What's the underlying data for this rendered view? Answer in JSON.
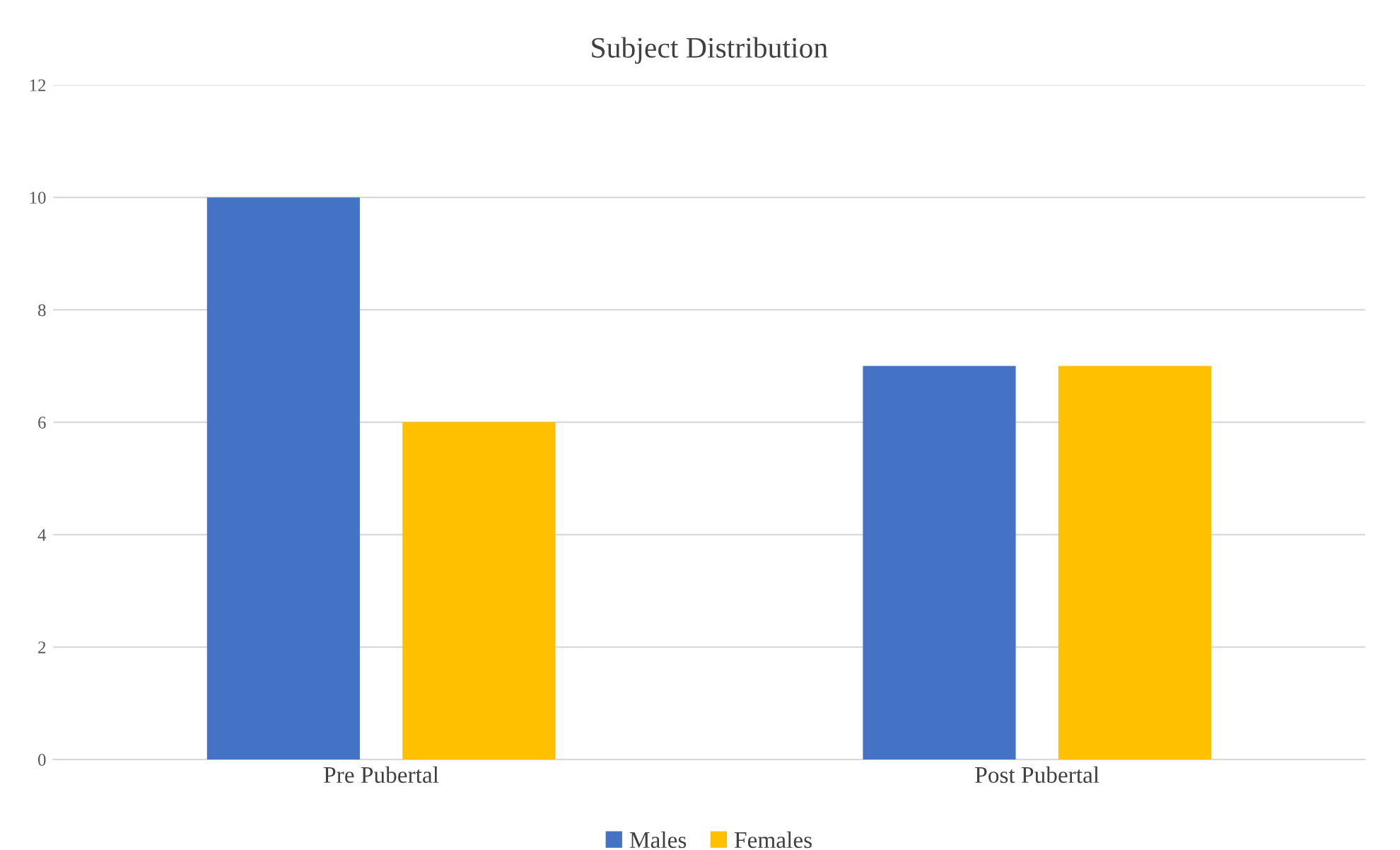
{
  "chart_data": {
    "type": "bar",
    "title": "Subject Distribution",
    "categories": [
      "Pre Pubertal",
      "Post Pubertal"
    ],
    "series": [
      {
        "name": "Males",
        "color": "#4472c4",
        "values": [
          10,
          7
        ]
      },
      {
        "name": "Females",
        "color": "#ffc000",
        "values": [
          6,
          7
        ]
      }
    ],
    "ylim": [
      0,
      12
    ],
    "yticks": [
      0,
      2,
      4,
      6,
      8,
      10,
      12
    ],
    "grid": "y",
    "legend": "bottom"
  }
}
